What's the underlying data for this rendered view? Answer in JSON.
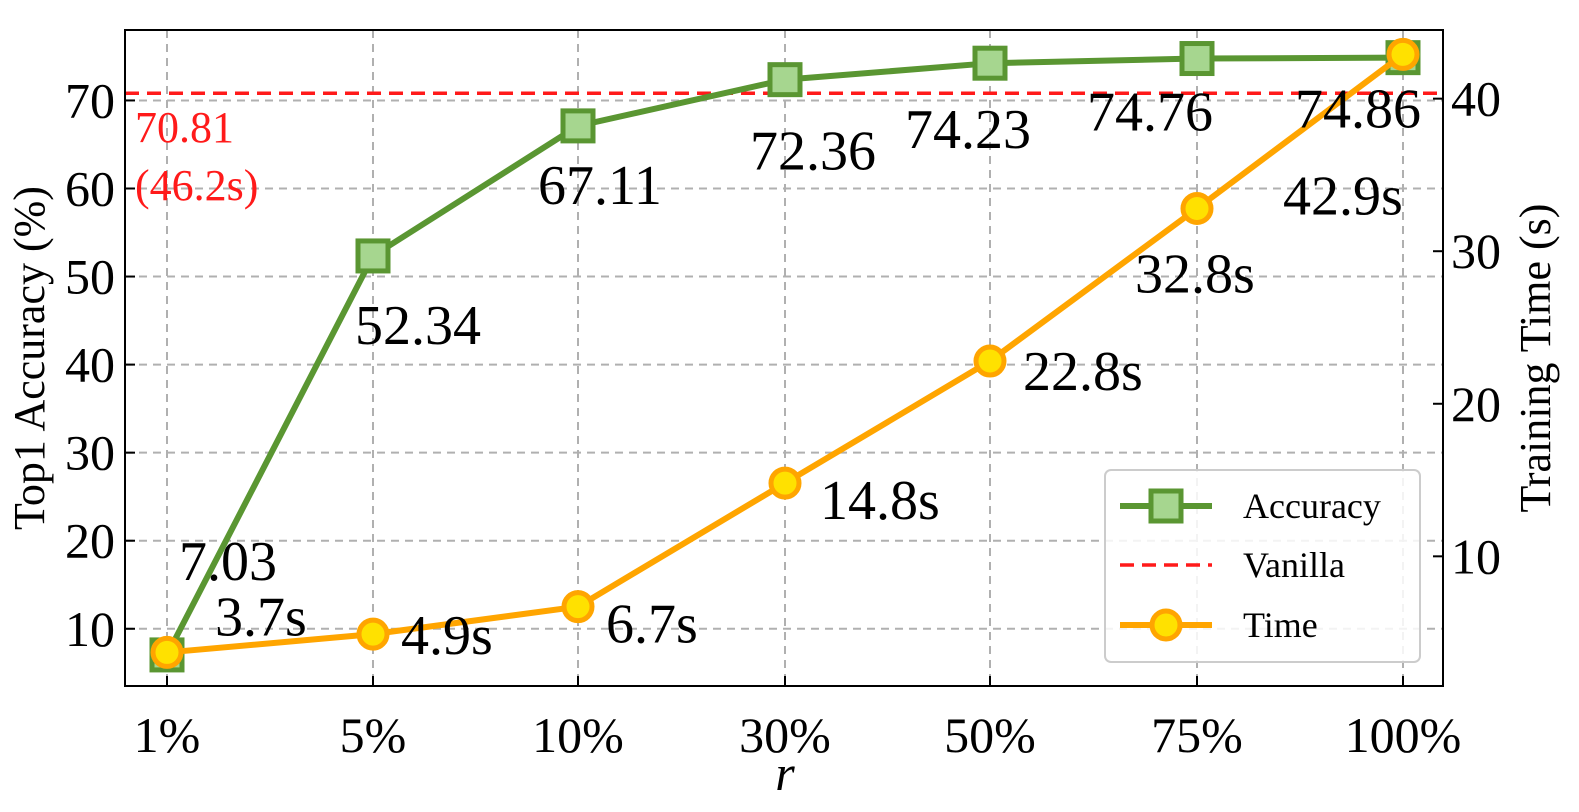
{
  "chart_data": {
    "type": "line",
    "categories": [
      "1%",
      "5%",
      "10%",
      "30%",
      "50%",
      "75%",
      "100%"
    ],
    "xlabel": "r",
    "ylabel": "Top1 Accuracy (%)",
    "y2label": "Training Time (s)",
    "ylim": [
      3.5,
      78
    ],
    "y2lim": [
      1.5,
      44.5
    ],
    "yticks": [
      10,
      20,
      30,
      40,
      50,
      60,
      70
    ],
    "y2ticks": [
      10,
      20,
      30,
      40
    ],
    "grid": true,
    "legend_position": "bottom-right",
    "series": [
      {
        "name": "Accuracy",
        "axis": "left",
        "values": [
          7.03,
          52.34,
          67.11,
          72.36,
          74.23,
          74.76,
          74.86
        ],
        "labels": [
          "7.03",
          "52.34",
          "67.11",
          "72.36",
          "74.23",
          "74.76",
          "74.86"
        ],
        "color": "#5a9632",
        "marker": "square",
        "marker_fill": "#a6d68f"
      },
      {
        "name": "Vanilla",
        "axis": "left",
        "value": 70.81,
        "color": "#ff1a1a",
        "style": "dashed",
        "annotation": [
          "70.81",
          "(46.2s)"
        ]
      },
      {
        "name": "Time",
        "axis": "right",
        "values": [
          3.7,
          4.9,
          6.7,
          14.8,
          22.8,
          32.8,
          42.9
        ],
        "labels": [
          "3.7s",
          "4.9s",
          "6.7s",
          "14.8s",
          "22.8s",
          "32.8s",
          "42.9s"
        ],
        "color": "#ffa500",
        "marker": "circle",
        "marker_fill": "#ffe100"
      }
    ]
  }
}
